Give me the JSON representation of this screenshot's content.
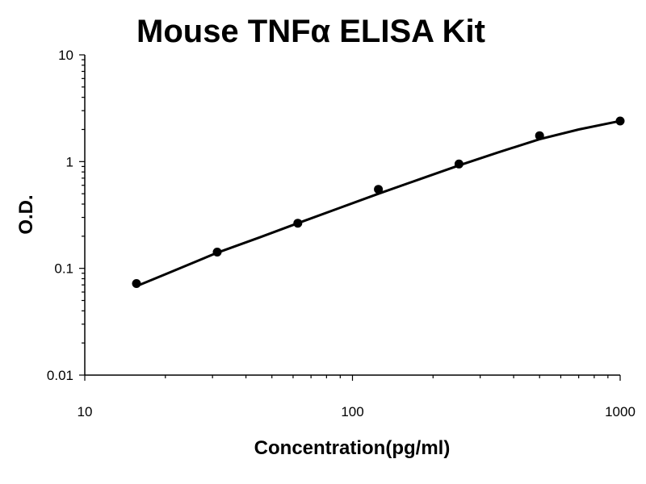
{
  "chart_data": {
    "type": "scatter",
    "title": "Mouse TNFα ELISA Kit",
    "xlabel": "Concentration(pg/ml)",
    "ylabel": "O.D.",
    "xscale": "log",
    "yscale": "log",
    "xlim": [
      10,
      1000
    ],
    "ylim": [
      0.01,
      10
    ],
    "x_ticks": [
      10,
      100,
      1000
    ],
    "y_ticks": [
      0.01,
      0.1,
      1,
      10
    ],
    "grid": false,
    "legend": "none",
    "series": [
      {
        "x": [
          15.6,
          31.25,
          62.5,
          125,
          250,
          500,
          1000
        ],
        "y": [
          0.072,
          0.142,
          0.265,
          0.55,
          0.95,
          1.75,
          2.4
        ]
      }
    ],
    "fit_curve": {
      "x": [
        15.6,
        20,
        31.25,
        45,
        62.5,
        90,
        125,
        180,
        250,
        350,
        500,
        700,
        1000
      ],
      "y": [
        0.068,
        0.088,
        0.14,
        0.195,
        0.265,
        0.37,
        0.5,
        0.69,
        0.92,
        1.22,
        1.62,
        2.0,
        2.4
      ]
    }
  }
}
